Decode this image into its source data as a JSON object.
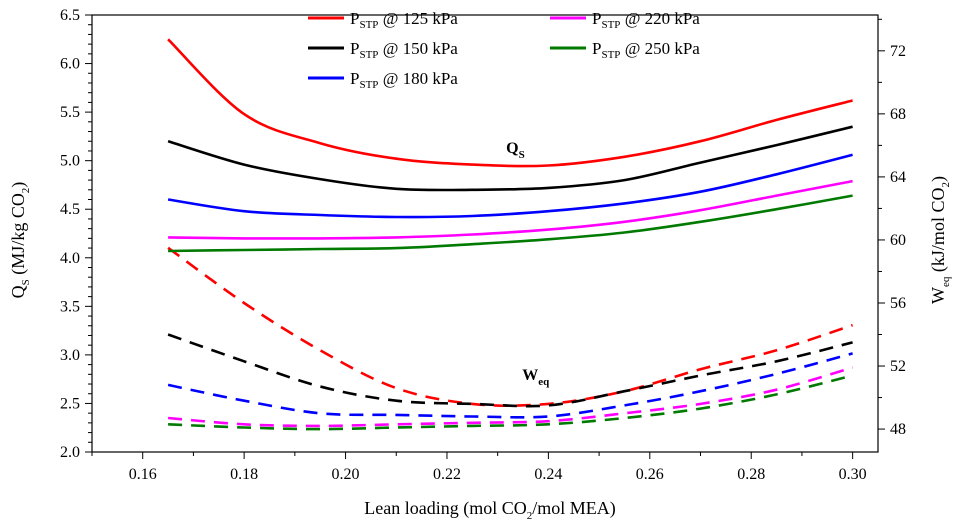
{
  "chart_data": {
    "type": "line",
    "xlabel": {
      "main": "Lean loading (mol CO",
      "sub": "2",
      "rest": "/mol MEA)"
    },
    "ylabel_left": {
      "q": "Q",
      "qsub": "S",
      "main": " (MJ/kg CO",
      "sub": "2",
      "rest": ")"
    },
    "ylabel_right": {
      "w": "W",
      "wsub": "eq",
      "main": " (kJ/mol CO",
      "sub": "2",
      "rest": ")"
    },
    "xlim": [
      0.15,
      0.305
    ],
    "ylim_left": [
      2.0,
      6.5
    ],
    "ylim_right": [
      46.545,
      74.273
    ],
    "x_ticks": [
      0.16,
      0.18,
      0.2,
      0.22,
      0.24,
      0.26,
      0.28,
      0.3
    ],
    "x_tick_labels": [
      "0.16",
      "0.18",
      "0.20",
      "0.22",
      "0.24",
      "0.26",
      "0.28",
      "0.30"
    ],
    "y_left_ticks": [
      2.0,
      2.5,
      3.0,
      3.5,
      4.0,
      4.5,
      5.0,
      5.5,
      6.0,
      6.5
    ],
    "y_left_tick_labels": [
      "2.0",
      "2.5",
      "3.0",
      "3.5",
      "4.0",
      "4.5",
      "5.0",
      "5.5",
      "6.0",
      "6.5"
    ],
    "y_right_ticks": [
      48,
      52,
      56,
      60,
      64,
      68,
      72
    ],
    "y_right_tick_labels": [
      "48",
      "52",
      "56",
      "60",
      "64",
      "68",
      "72"
    ],
    "annotations": [
      {
        "main": "Q",
        "sub": "S",
        "x": 0.2335,
        "y_left": 5.08
      },
      {
        "main": "W",
        "sub": "eq",
        "x": 0.2375,
        "y_left": 2.74
      }
    ],
    "legend": {
      "placement": "top"
    },
    "x": [
      0.165,
      0.18,
      0.195,
      0.21,
      0.225,
      0.24,
      0.255,
      0.27,
      0.285,
      0.3
    ],
    "series": [
      {
        "name": "P",
        "sub": "STP",
        "suffix": " @ 125 kPa",
        "color": "#ff0000",
        "qs": [
          6.25,
          5.48,
          5.18,
          5.02,
          4.96,
          4.95,
          5.04,
          5.2,
          5.42,
          5.62
        ],
        "weq": [
          59.5,
          56.0,
          53.0,
          50.6,
          49.6,
          49.6,
          50.4,
          51.8,
          53.0,
          54.6
        ]
      },
      {
        "name": "P",
        "sub": "STP",
        "suffix": " @ 150 kPa",
        "color": "#000000",
        "qs": [
          5.2,
          4.96,
          4.81,
          4.71,
          4.7,
          4.72,
          4.8,
          4.98,
          5.16,
          5.35
        ],
        "weq": [
          54.0,
          52.3,
          50.7,
          49.8,
          49.6,
          49.5,
          50.4,
          51.4,
          52.3,
          53.5
        ]
      },
      {
        "name": "P",
        "sub": "STP",
        "suffix": " @ 180 kPa",
        "color": "#0000ff",
        "qs": [
          4.6,
          4.48,
          4.44,
          4.42,
          4.43,
          4.48,
          4.56,
          4.68,
          4.86,
          5.06
        ],
        "weq": [
          50.8,
          49.8,
          49.0,
          48.9,
          48.8,
          48.8,
          49.5,
          50.4,
          51.5,
          52.8
        ]
      },
      {
        "name": "P",
        "sub": "STP",
        "suffix": " @ 220 kPa",
        "color": "#ff00ff",
        "qs": [
          4.21,
          4.2,
          4.2,
          4.21,
          4.24,
          4.29,
          4.37,
          4.49,
          4.64,
          4.79
        ],
        "weq": [
          48.7,
          48.3,
          48.2,
          48.3,
          48.4,
          48.5,
          49.0,
          49.6,
          50.5,
          51.9
        ]
      },
      {
        "name": "P",
        "sub": "STP",
        "suffix": " @ 250 kPa",
        "color": "#007a00",
        "qs": [
          4.07,
          4.08,
          4.09,
          4.1,
          4.14,
          4.19,
          4.26,
          4.37,
          4.5,
          4.64
        ],
        "weq": [
          48.3,
          48.1,
          48.0,
          48.1,
          48.2,
          48.3,
          48.7,
          49.3,
          50.2,
          51.4
        ]
      }
    ],
    "line_styles": {
      "qs": "solid",
      "weq": "dashed"
    }
  }
}
